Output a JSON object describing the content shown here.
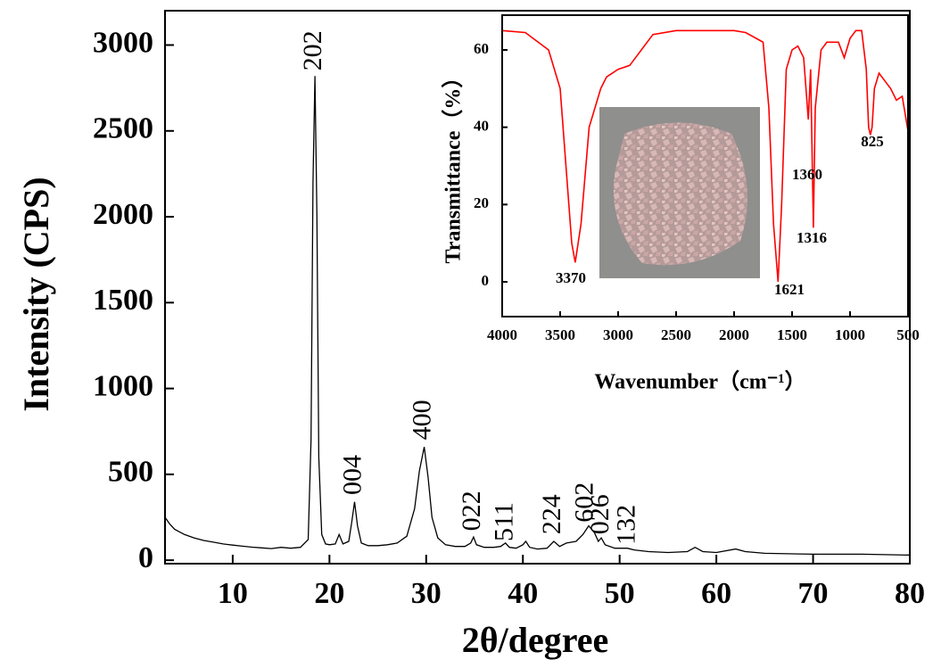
{
  "chart_data": [
    {
      "type": "line",
      "color": "#000000",
      "xlabel": "2θ/degree",
      "ylabel": "Intensity (CPS)",
      "xlim": [
        3,
        80
      ],
      "ylim": [
        -20,
        3200
      ],
      "xticks": [
        10,
        20,
        30,
        40,
        50,
        60,
        70,
        80
      ],
      "yticks": [
        0,
        500,
        1000,
        1500,
        2000,
        2500,
        3000
      ],
      "x": [
        3,
        3.5,
        4,
        5,
        6,
        7,
        8,
        9,
        10,
        11,
        12,
        13,
        14,
        15,
        16,
        17,
        17.8,
        18.1,
        18.3,
        18.5,
        18.7,
        18.9,
        19.2,
        19.6,
        20,
        20.6,
        21,
        21.4,
        22,
        22.3,
        22.6,
        22.9,
        23.3,
        24,
        25,
        26,
        27,
        28,
        28.8,
        29.3,
        29.8,
        30.2,
        30.6,
        31.2,
        32,
        33,
        34,
        34.6,
        34.9,
        35.2,
        36,
        37,
        37.7,
        38.2,
        38.6,
        39.3,
        40,
        40.3,
        40.7,
        41.5,
        42.5,
        43.2,
        43.8,
        44.5,
        45.5,
        46.2,
        46.8,
        47.4,
        47.8,
        48.1,
        48.5,
        49.5,
        50.8,
        51.5,
        53,
        55,
        57,
        57.8,
        58.6,
        60,
        62,
        63,
        65,
        70,
        75,
        80
      ],
      "values": [
        250,
        210,
        180,
        150,
        130,
        115,
        105,
        95,
        88,
        82,
        76,
        72,
        68,
        75,
        70,
        75,
        120,
        700,
        2200,
        2820,
        2000,
        600,
        150,
        95,
        90,
        95,
        150,
        95,
        110,
        220,
        340,
        200,
        100,
        85,
        85,
        90,
        100,
        140,
        300,
        520,
        660,
        480,
        250,
        130,
        90,
        80,
        80,
        100,
        135,
        90,
        75,
        75,
        80,
        100,
        75,
        70,
        90,
        110,
        75,
        65,
        70,
        110,
        80,
        100,
        110,
        150,
        200,
        160,
        110,
        130,
        90,
        70,
        70,
        60,
        50,
        45,
        50,
        75,
        50,
        45,
        65,
        50,
        40,
        35,
        35,
        30
      ],
      "annotations": [
        {
          "text": "202",
          "x": 18.5,
          "y": 2850
        },
        {
          "text": "004",
          "x": 22.6,
          "y": 380
        },
        {
          "text": "400",
          "x": 29.8,
          "y": 700
        },
        {
          "text": "022",
          "x": 34.9,
          "y": 170
        },
        {
          "text": "511",
          "x": 38.3,
          "y": 110
        },
        {
          "text": "224",
          "x": 43.2,
          "y": 150
        },
        {
          "text": "602",
          "x": 46.6,
          "y": 220
        },
        {
          "text": "026",
          "x": 48.2,
          "y": 150
        },
        {
          "text": "132",
          "x": 50.9,
          "y": 90
        }
      ]
    },
    {
      "type": "line",
      "color": "#ff0000",
      "xlabel": "Wavenumber（cm⁻¹）",
      "ylabel": "Transmittance（%）",
      "xlim": [
        4000,
        500
      ],
      "ylim": [
        -9,
        69
      ],
      "xticks": [
        4000,
        3500,
        3000,
        2500,
        2000,
        1500,
        1000,
        500
      ],
      "yticks": [
        0,
        20,
        40,
        60
      ],
      "x": [
        4000,
        3800,
        3600,
        3500,
        3450,
        3400,
        3370,
        3320,
        3250,
        3150,
        3100,
        3000,
        2900,
        2850,
        2800,
        2700,
        2500,
        2000,
        1900,
        1750,
        1700,
        1660,
        1621,
        1590,
        1550,
        1500,
        1450,
        1400,
        1380,
        1360,
        1340,
        1316,
        1300,
        1250,
        1200,
        1100,
        1050,
        1000,
        950,
        900,
        860,
        840,
        825,
        810,
        790,
        750,
        700,
        650,
        600,
        550,
        500
      ],
      "values": [
        65,
        64.5,
        60,
        50,
        30,
        10,
        5,
        15,
        40,
        50,
        53,
        55,
        56,
        58,
        60,
        64,
        65,
        65,
        64.5,
        62,
        45,
        15,
        0,
        20,
        55,
        60,
        61,
        58,
        50,
        42,
        55,
        14,
        45,
        60,
        62,
        62,
        58,
        63,
        65,
        65,
        55,
        40,
        38,
        40,
        50,
        54,
        52,
        50,
        47,
        48,
        39
      ],
      "annotations": [
        {
          "text": "3370",
          "x": 3408,
          "y": 0.7
        },
        {
          "text": "1621",
          "x": 1523,
          "y": -2.3
        },
        {
          "text": "1360",
          "x": 1369,
          "y": 27.4
        },
        {
          "text": "1316",
          "x": 1331,
          "y": 11
        },
        {
          "text": "825",
          "x": 808,
          "y": 36
        }
      ]
    }
  ]
}
